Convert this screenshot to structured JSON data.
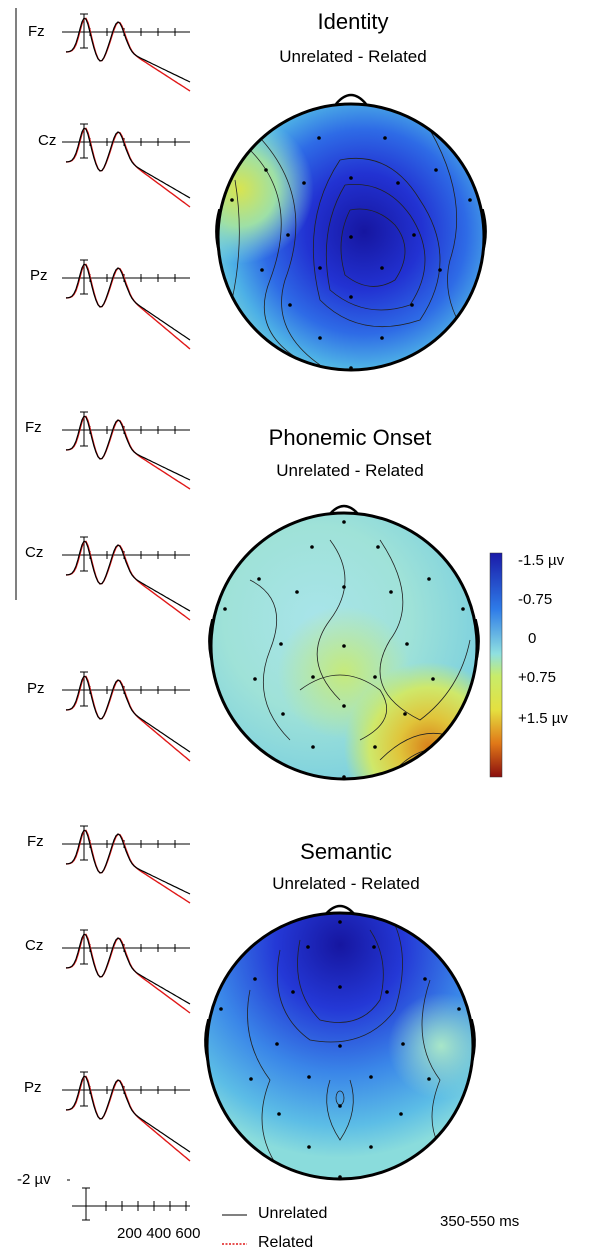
{
  "panels": [
    {
      "title": "Identity",
      "subtitle": "Unrelated - Related",
      "electrodes": [
        "Fz",
        "Cz",
        "Pz"
      ],
      "map_tint": "blue"
    },
    {
      "title": "Phonemic Onset",
      "subtitle": "Unrelated - Related",
      "electrodes": [
        "Fz",
        "Cz",
        "Pz"
      ],
      "map_tint": "cyan-yellow"
    },
    {
      "title": "Semantic",
      "subtitle": "Unrelated - Related",
      "electrodes": [
        "Fz",
        "Cz",
        "Pz"
      ],
      "map_tint": "blue"
    }
  ],
  "colorbar": {
    "labels": [
      "-1.5 µv",
      "-0.75",
      "0",
      "+0.75",
      "+1.5 µv"
    ],
    "colors": [
      "#1a1aa8",
      "#2e7be8",
      "#8fe0e0",
      "#e4e040",
      "#e07818",
      "#8a0e0e"
    ]
  },
  "scale": {
    "amplitude_label": "-2 µv",
    "time_ticks_label": "200 400 600"
  },
  "legend": {
    "unrelated_label": "Unrelated",
    "related_label": "Related",
    "unrelated_color": "#000000",
    "related_color": "#e01818"
  },
  "time_window": "350-550 ms"
}
